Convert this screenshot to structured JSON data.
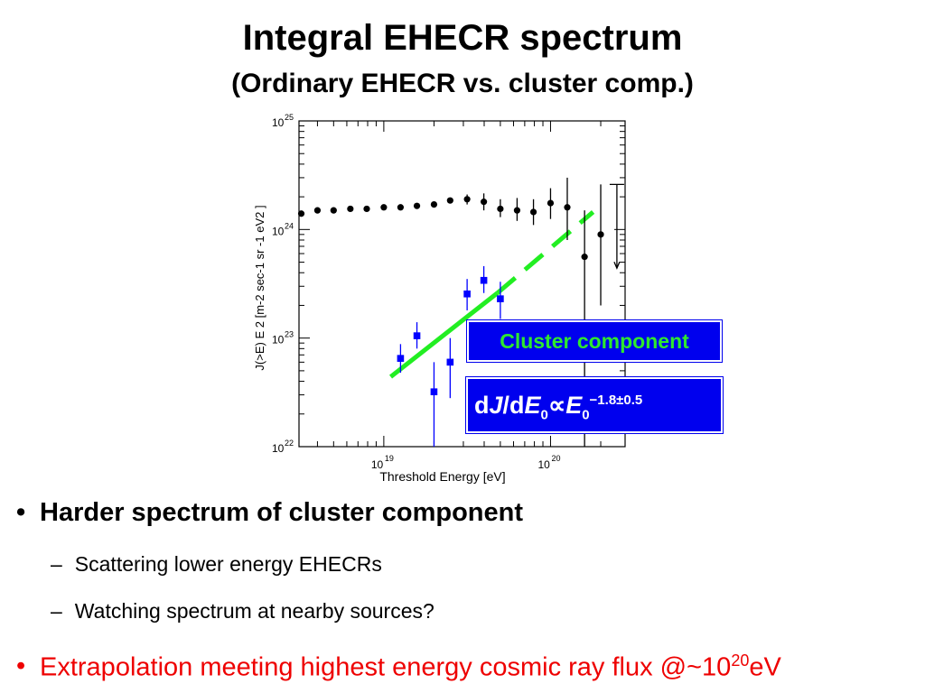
{
  "slide": {
    "title": "Integral EHECR spectrum",
    "subtitle": "(Ordinary EHECR vs. cluster comp.)"
  },
  "chart_data": {
    "type": "scatter",
    "xlabel": "Threshold Energy [eV]",
    "ylabel": "J(>E) E 2 [m-2 sec-1 sr -1 eV2 ]",
    "x_scale": "log",
    "y_scale": "log",
    "xlim": [
      3.1e+18,
      2.8e+20
    ],
    "ylim": [
      1e+22,
      1e+25
    ],
    "x_ticks": [
      {
        "label": "10",
        "exp": "19"
      },
      {
        "label": "10",
        "exp": "20"
      }
    ],
    "y_ticks": [
      {
        "label": "10",
        "exp": "22"
      },
      {
        "label": "10",
        "exp": "23"
      },
      {
        "label": "10",
        "exp": "24"
      },
      {
        "label": "10",
        "exp": "25"
      }
    ],
    "series": [
      {
        "marker": "circle",
        "color": "#000000",
        "points": [
          {
            "x": 3.2e+18,
            "y": 1.4e+24
          },
          {
            "x": 4e+18,
            "y": 1.5e+24
          },
          {
            "x": 5e+18,
            "y": 1.5e+24
          },
          {
            "x": 6.3e+18,
            "y": 1.55e+24
          },
          {
            "x": 7.9e+18,
            "y": 1.55e+24
          },
          {
            "x": 1e+19,
            "y": 1.6e+24
          },
          {
            "x": 1.26e+19,
            "y": 1.6e+24
          },
          {
            "x": 1.58e+19,
            "y": 1.65e+24
          },
          {
            "x": 2e+19,
            "y": 1.7e+24
          },
          {
            "x": 2.5e+19,
            "y": 1.85e+24
          },
          {
            "x": 3.16e+19,
            "y": 1.9e+24,
            "err": [
              1.7e+24,
              2.1e+24
            ]
          },
          {
            "x": 3.98e+19,
            "y": 1.8e+24,
            "err": [
              1.5e+24,
              2.15e+24
            ]
          },
          {
            "x": 5e+19,
            "y": 1.55e+24,
            "err": [
              1.3e+24,
              1.9e+24
            ]
          },
          {
            "x": 6.3e+19,
            "y": 1.5e+24,
            "err": [
              1.2e+24,
              1.95e+24
            ]
          },
          {
            "x": 7.9e+19,
            "y": 1.45e+24,
            "err": [
              1.1e+24,
              1.9e+24
            ]
          },
          {
            "x": 1e+20,
            "y": 1.75e+24,
            "err": [
              1.25e+24,
              2.4e+24
            ]
          },
          {
            "x": 1.26e+20,
            "y": 1.6e+24,
            "err": [
              8e+23,
              3e+24
            ]
          },
          {
            "x": 1.6e+20,
            "y": 5.6e+23,
            "err": [
              1e+22,
              1.5e+24
            ]
          },
          {
            "x": 2e+20,
            "y": 9e+23,
            "err": [
              2e+23,
              2.6e+24
            ]
          }
        ],
        "upper_limit": {
          "x": 2.5e+20,
          "y_top": 2.6e+24,
          "y_bottom": 4.4e+23
        }
      },
      {
        "marker": "square",
        "color": "#0000ff",
        "points": [
          {
            "x": 1.26e+19,
            "y": 6.5e+22,
            "err": [
              4.8e+22,
              8.8e+22
            ]
          },
          {
            "x": 1.58e+19,
            "y": 1.05e+23,
            "err": [
              8e+22,
              1.4e+23
            ]
          },
          {
            "x": 2e+19,
            "y": 3.2e+22,
            "err": [
              1e+22,
              6e+22
            ]
          },
          {
            "x": 2.5e+19,
            "y": 6e+22,
            "err": [
              2.8e+22,
              1e+23
            ]
          },
          {
            "x": 3.16e+19,
            "y": 2.55e+23,
            "err": [
              1.8e+23,
              3.5e+23
            ]
          },
          {
            "x": 3.98e+19,
            "y": 3.4e+23,
            "err": [
              2.6e+23,
              4.6e+23
            ]
          },
          {
            "x": 5e+19,
            "y": 2.3e+23,
            "err": [
              1.5e+23,
              3.3e+23
            ]
          }
        ]
      }
    ],
    "fit_line": {
      "color": "#22ee22",
      "solid": [
        {
          "x": 1.1e+19,
          "y": 4.4e+22
        },
        {
          "x": 4.8e+19,
          "y": 2.6e+23
        }
      ],
      "dashed": [
        {
          "x": 4.8e+19,
          "y": 2.6e+23
        },
        {
          "x": 1.8e+20,
          "y": 1.45e+24
        }
      ]
    }
  },
  "annotations": {
    "cluster_label": "Cluster component",
    "formula": {
      "d1": "d",
      "J": "J",
      "slash": "/d",
      "E": "E",
      "sub0": "0",
      "prop": "∝",
      "E2": "E",
      "sub0b": "0",
      "exp": "−1.8±0.5"
    }
  },
  "bullets": {
    "b1": {
      "marker": "•",
      "text": "Harder spectrum of cluster component"
    },
    "b2": {
      "marker": "–",
      "text": "Scattering lower energy EHECRs"
    },
    "b3": {
      "marker": "–",
      "text": "Watching spectrum at nearby sources?"
    },
    "b4": {
      "marker": "•",
      "text": "Extrapolation meeting highest energy cosmic ray flux @~10",
      "sup": "20",
      "tail": "eV"
    }
  }
}
